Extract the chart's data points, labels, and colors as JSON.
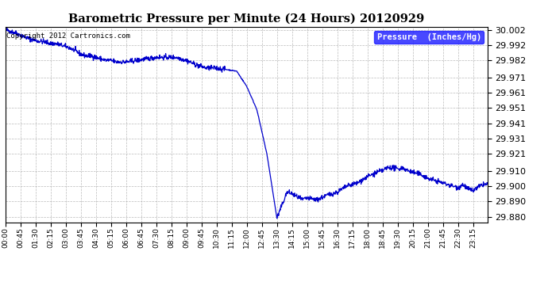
{
  "title": "Barometric Pressure per Minute (24 Hours) 20120929",
  "copyright": "Copyright 2012 Cartronics.com",
  "legend_label": "Pressure  (Inches/Hg)",
  "line_color": "#0000cc",
  "background_color": "#ffffff",
  "grid_color": "#aaaaaa",
  "ylim": [
    29.876,
    30.004
  ],
  "yticks": [
    29.88,
    29.89,
    29.9,
    29.91,
    29.921,
    29.931,
    29.941,
    29.951,
    29.961,
    29.971,
    29.982,
    29.992,
    30.002
  ],
  "xtick_labels": [
    "00:00",
    "00:45",
    "01:30",
    "02:15",
    "03:00",
    "03:45",
    "04:30",
    "05:15",
    "06:00",
    "06:45",
    "07:30",
    "08:15",
    "09:00",
    "09:45",
    "10:30",
    "11:15",
    "12:00",
    "12:45",
    "13:30",
    "14:15",
    "15:00",
    "15:45",
    "16:30",
    "17:15",
    "18:00",
    "18:45",
    "19:30",
    "20:15",
    "21:00",
    "21:45",
    "22:30",
    "23:15"
  ],
  "key_points_minutes": [
    0,
    30,
    60,
    90,
    120,
    135,
    150,
    165,
    180,
    195,
    210,
    225,
    240,
    255,
    270,
    285,
    300,
    315,
    330,
    345,
    360,
    390,
    420,
    450,
    480,
    510,
    540,
    570,
    600,
    630,
    660,
    690,
    720,
    750,
    780,
    810,
    840,
    855,
    870,
    885,
    900,
    930,
    960,
    990,
    1020,
    1050,
    1080,
    1110,
    1125,
    1140,
    1155,
    1170,
    1185,
    1200,
    1215,
    1230,
    1245,
    1260,
    1275,
    1290,
    1305,
    1320,
    1335,
    1350,
    1365,
    1380,
    1395,
    1410,
    1425,
    1439
  ],
  "key_points_values": [
    30.002,
    30.0,
    29.997,
    29.995,
    29.994,
    29.993,
    29.993,
    29.992,
    29.991,
    29.99,
    29.988,
    29.986,
    29.985,
    29.985,
    29.984,
    29.983,
    29.982,
    29.982,
    29.981,
    29.981,
    29.981,
    29.982,
    29.983,
    29.984,
    29.984,
    29.984,
    29.982,
    29.979,
    29.977,
    29.977,
    29.976,
    29.975,
    29.965,
    29.95,
    29.921,
    29.879,
    29.896,
    29.895,
    29.893,
    29.891,
    29.892,
    29.891,
    29.894,
    29.896,
    29.9,
    29.902,
    29.906,
    29.909,
    29.91,
    29.912,
    29.912,
    29.911,
    29.912,
    29.91,
    29.909,
    29.908,
    29.907,
    29.905,
    29.904,
    29.903,
    29.902,
    29.901,
    29.9,
    29.899,
    29.901,
    29.898,
    29.897,
    29.899,
    29.901,
    29.901
  ]
}
